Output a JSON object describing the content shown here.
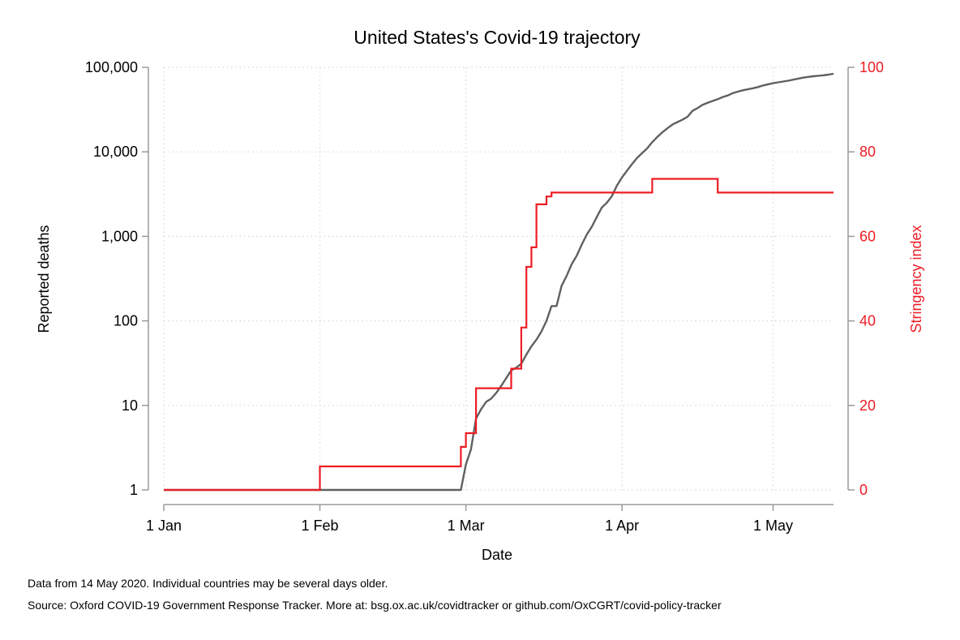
{
  "chart_data": {
    "type": "line",
    "title": "United States's Covid-19 trajectory",
    "xlabel": "Date",
    "ylabel_left": "Reported deaths",
    "ylabel_right": "Stringency index",
    "x_ticks": [
      "1 Jan",
      "1 Feb",
      "1 Mar",
      "1 Apr",
      "1 May"
    ],
    "y_left_ticks": [
      "1",
      "10",
      "100",
      "1,000",
      "10,000",
      "100,000"
    ],
    "y_left_scale": "log",
    "y_left_range": [
      1,
      100000
    ],
    "y_right_ticks": [
      "0",
      "20",
      "40",
      "60",
      "80",
      "100"
    ],
    "y_right_range": [
      0,
      100
    ],
    "x_range": [
      "2020-01-01",
      "2020-05-14"
    ],
    "grid": true,
    "colors": {
      "deaths": "#606060",
      "stringency": "#ee1c25",
      "axis": "#9a9a9a",
      "right_axis_text": "#ee1c25"
    },
    "series": [
      {
        "name": "Reported deaths",
        "axis": "left",
        "points": [
          [
            "2020-01-01",
            1
          ],
          [
            "2020-02-29",
            1
          ],
          [
            "2020-03-01",
            2
          ],
          [
            "2020-03-02",
            3
          ],
          [
            "2020-03-03",
            7
          ],
          [
            "2020-03-04",
            9
          ],
          [
            "2020-03-05",
            11
          ],
          [
            "2020-03-06",
            12
          ],
          [
            "2020-03-07",
            14
          ],
          [
            "2020-03-08",
            17
          ],
          [
            "2020-03-09",
            21
          ],
          [
            "2020-03-10",
            26
          ],
          [
            "2020-03-11",
            28
          ],
          [
            "2020-03-12",
            31
          ],
          [
            "2020-03-13",
            40
          ],
          [
            "2020-03-14",
            50
          ],
          [
            "2020-03-15",
            60
          ],
          [
            "2020-03-16",
            75
          ],
          [
            "2020-03-17",
            100
          ],
          [
            "2020-03-18",
            150
          ],
          [
            "2020-03-19",
            150
          ],
          [
            "2020-03-20",
            260
          ],
          [
            "2020-03-21",
            340
          ],
          [
            "2020-03-22",
            470
          ],
          [
            "2020-03-23",
            590
          ],
          [
            "2020-03-24",
            800
          ],
          [
            "2020-03-25",
            1050
          ],
          [
            "2020-03-26",
            1300
          ],
          [
            "2020-03-27",
            1700
          ],
          [
            "2020-03-28",
            2200
          ],
          [
            "2020-03-29",
            2500
          ],
          [
            "2020-03-30",
            3000
          ],
          [
            "2020-03-31",
            4000
          ],
          [
            "2020-04-01",
            5000
          ],
          [
            "2020-04-02",
            6000
          ],
          [
            "2020-04-03",
            7200
          ],
          [
            "2020-04-04",
            8500
          ],
          [
            "2020-04-05",
            9700
          ],
          [
            "2020-04-06",
            11000
          ],
          [
            "2020-04-07",
            13000
          ],
          [
            "2020-04-08",
            15000
          ],
          [
            "2020-04-09",
            17000
          ],
          [
            "2020-04-10",
            19000
          ],
          [
            "2020-04-11",
            21000
          ],
          [
            "2020-04-12",
            22500
          ],
          [
            "2020-04-13",
            24000
          ],
          [
            "2020-04-14",
            26000
          ],
          [
            "2020-04-15",
            30500
          ],
          [
            "2020-04-16",
            33000
          ],
          [
            "2020-04-17",
            36000
          ],
          [
            "2020-04-18",
            38000
          ],
          [
            "2020-04-19",
            40000
          ],
          [
            "2020-04-20",
            42000
          ],
          [
            "2020-04-21",
            44500
          ],
          [
            "2020-04-22",
            46500
          ],
          [
            "2020-04-23",
            49500
          ],
          [
            "2020-04-24",
            51500
          ],
          [
            "2020-04-25",
            53500
          ],
          [
            "2020-04-26",
            55000
          ],
          [
            "2020-04-27",
            56500
          ],
          [
            "2020-04-28",
            58500
          ],
          [
            "2020-04-29",
            61000
          ],
          [
            "2020-04-30",
            63000
          ],
          [
            "2020-05-01",
            65000
          ],
          [
            "2020-05-02",
            66500
          ],
          [
            "2020-05-03",
            68000
          ],
          [
            "2020-05-04",
            69500
          ],
          [
            "2020-05-05",
            71500
          ],
          [
            "2020-05-06",
            73500
          ],
          [
            "2020-05-07",
            75500
          ],
          [
            "2020-05-08",
            77000
          ],
          [
            "2020-05-09",
            78500
          ],
          [
            "2020-05-10",
            79500
          ],
          [
            "2020-05-11",
            80500
          ],
          [
            "2020-05-12",
            82000
          ],
          [
            "2020-05-13",
            84000
          ]
        ]
      },
      {
        "name": "Stringency index",
        "axis": "right",
        "step": true,
        "points": [
          [
            "2020-01-01",
            0
          ],
          [
            "2020-02-01",
            5.56
          ],
          [
            "2020-02-29",
            10.19
          ],
          [
            "2020-03-01",
            13.43
          ],
          [
            "2020-03-03",
            24.07
          ],
          [
            "2020-03-10",
            28.7
          ],
          [
            "2020-03-12",
            38.43
          ],
          [
            "2020-03-13",
            52.78
          ],
          [
            "2020-03-14",
            57.41
          ],
          [
            "2020-03-15",
            67.59
          ],
          [
            "2020-03-17",
            69.44
          ],
          [
            "2020-03-18",
            70.37
          ],
          [
            "2020-04-07",
            73.61
          ],
          [
            "2020-04-20",
            70.37
          ],
          [
            "2020-05-13",
            70.37
          ]
        ]
      }
    ]
  },
  "footnotes": {
    "line1": "Data from 14 May 2020. Individual countries may be several days older.",
    "line2": "Source: Oxford COVID-19 Government Response Tracker. More at: bsg.ox.ac.uk/covidtracker or github.com/OxCGRT/covid-policy-tracker"
  }
}
